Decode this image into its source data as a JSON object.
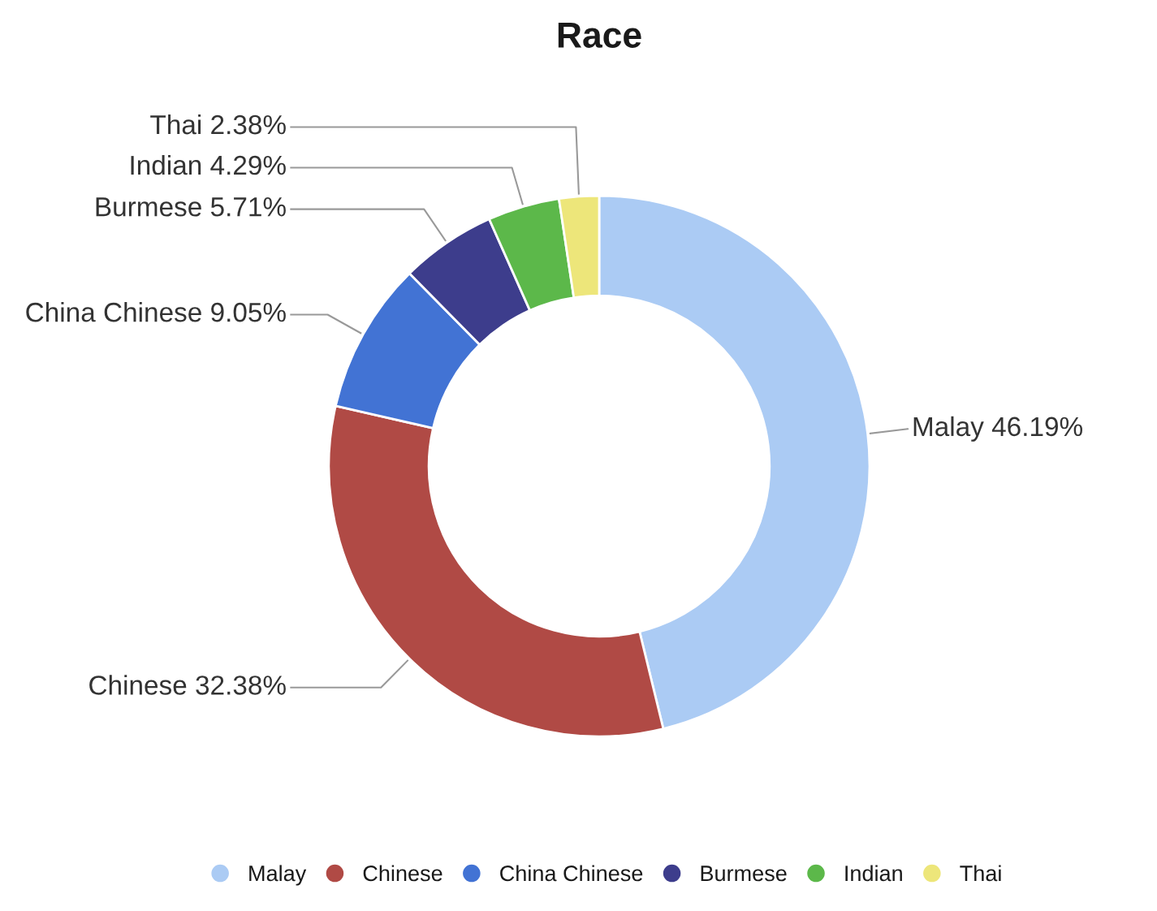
{
  "chart_data": {
    "type": "donut",
    "title": "Race",
    "categories": [
      "Malay",
      "Chinese",
      "China Chinese",
      "Burmese",
      "Indian",
      "Thai"
    ],
    "values": [
      46.19,
      32.38,
      9.05,
      5.71,
      4.29,
      2.38
    ],
    "value_labels": [
      "46.19%",
      "32.38%",
      "9.05%",
      "5.71%",
      "4.29%",
      "2.38%"
    ],
    "colors": [
      "#abcbf4",
      "#b04a45",
      "#4273d4",
      "#3d3d8c",
      "#5cb84a",
      "#ede67a"
    ],
    "legend": "bottom"
  }
}
